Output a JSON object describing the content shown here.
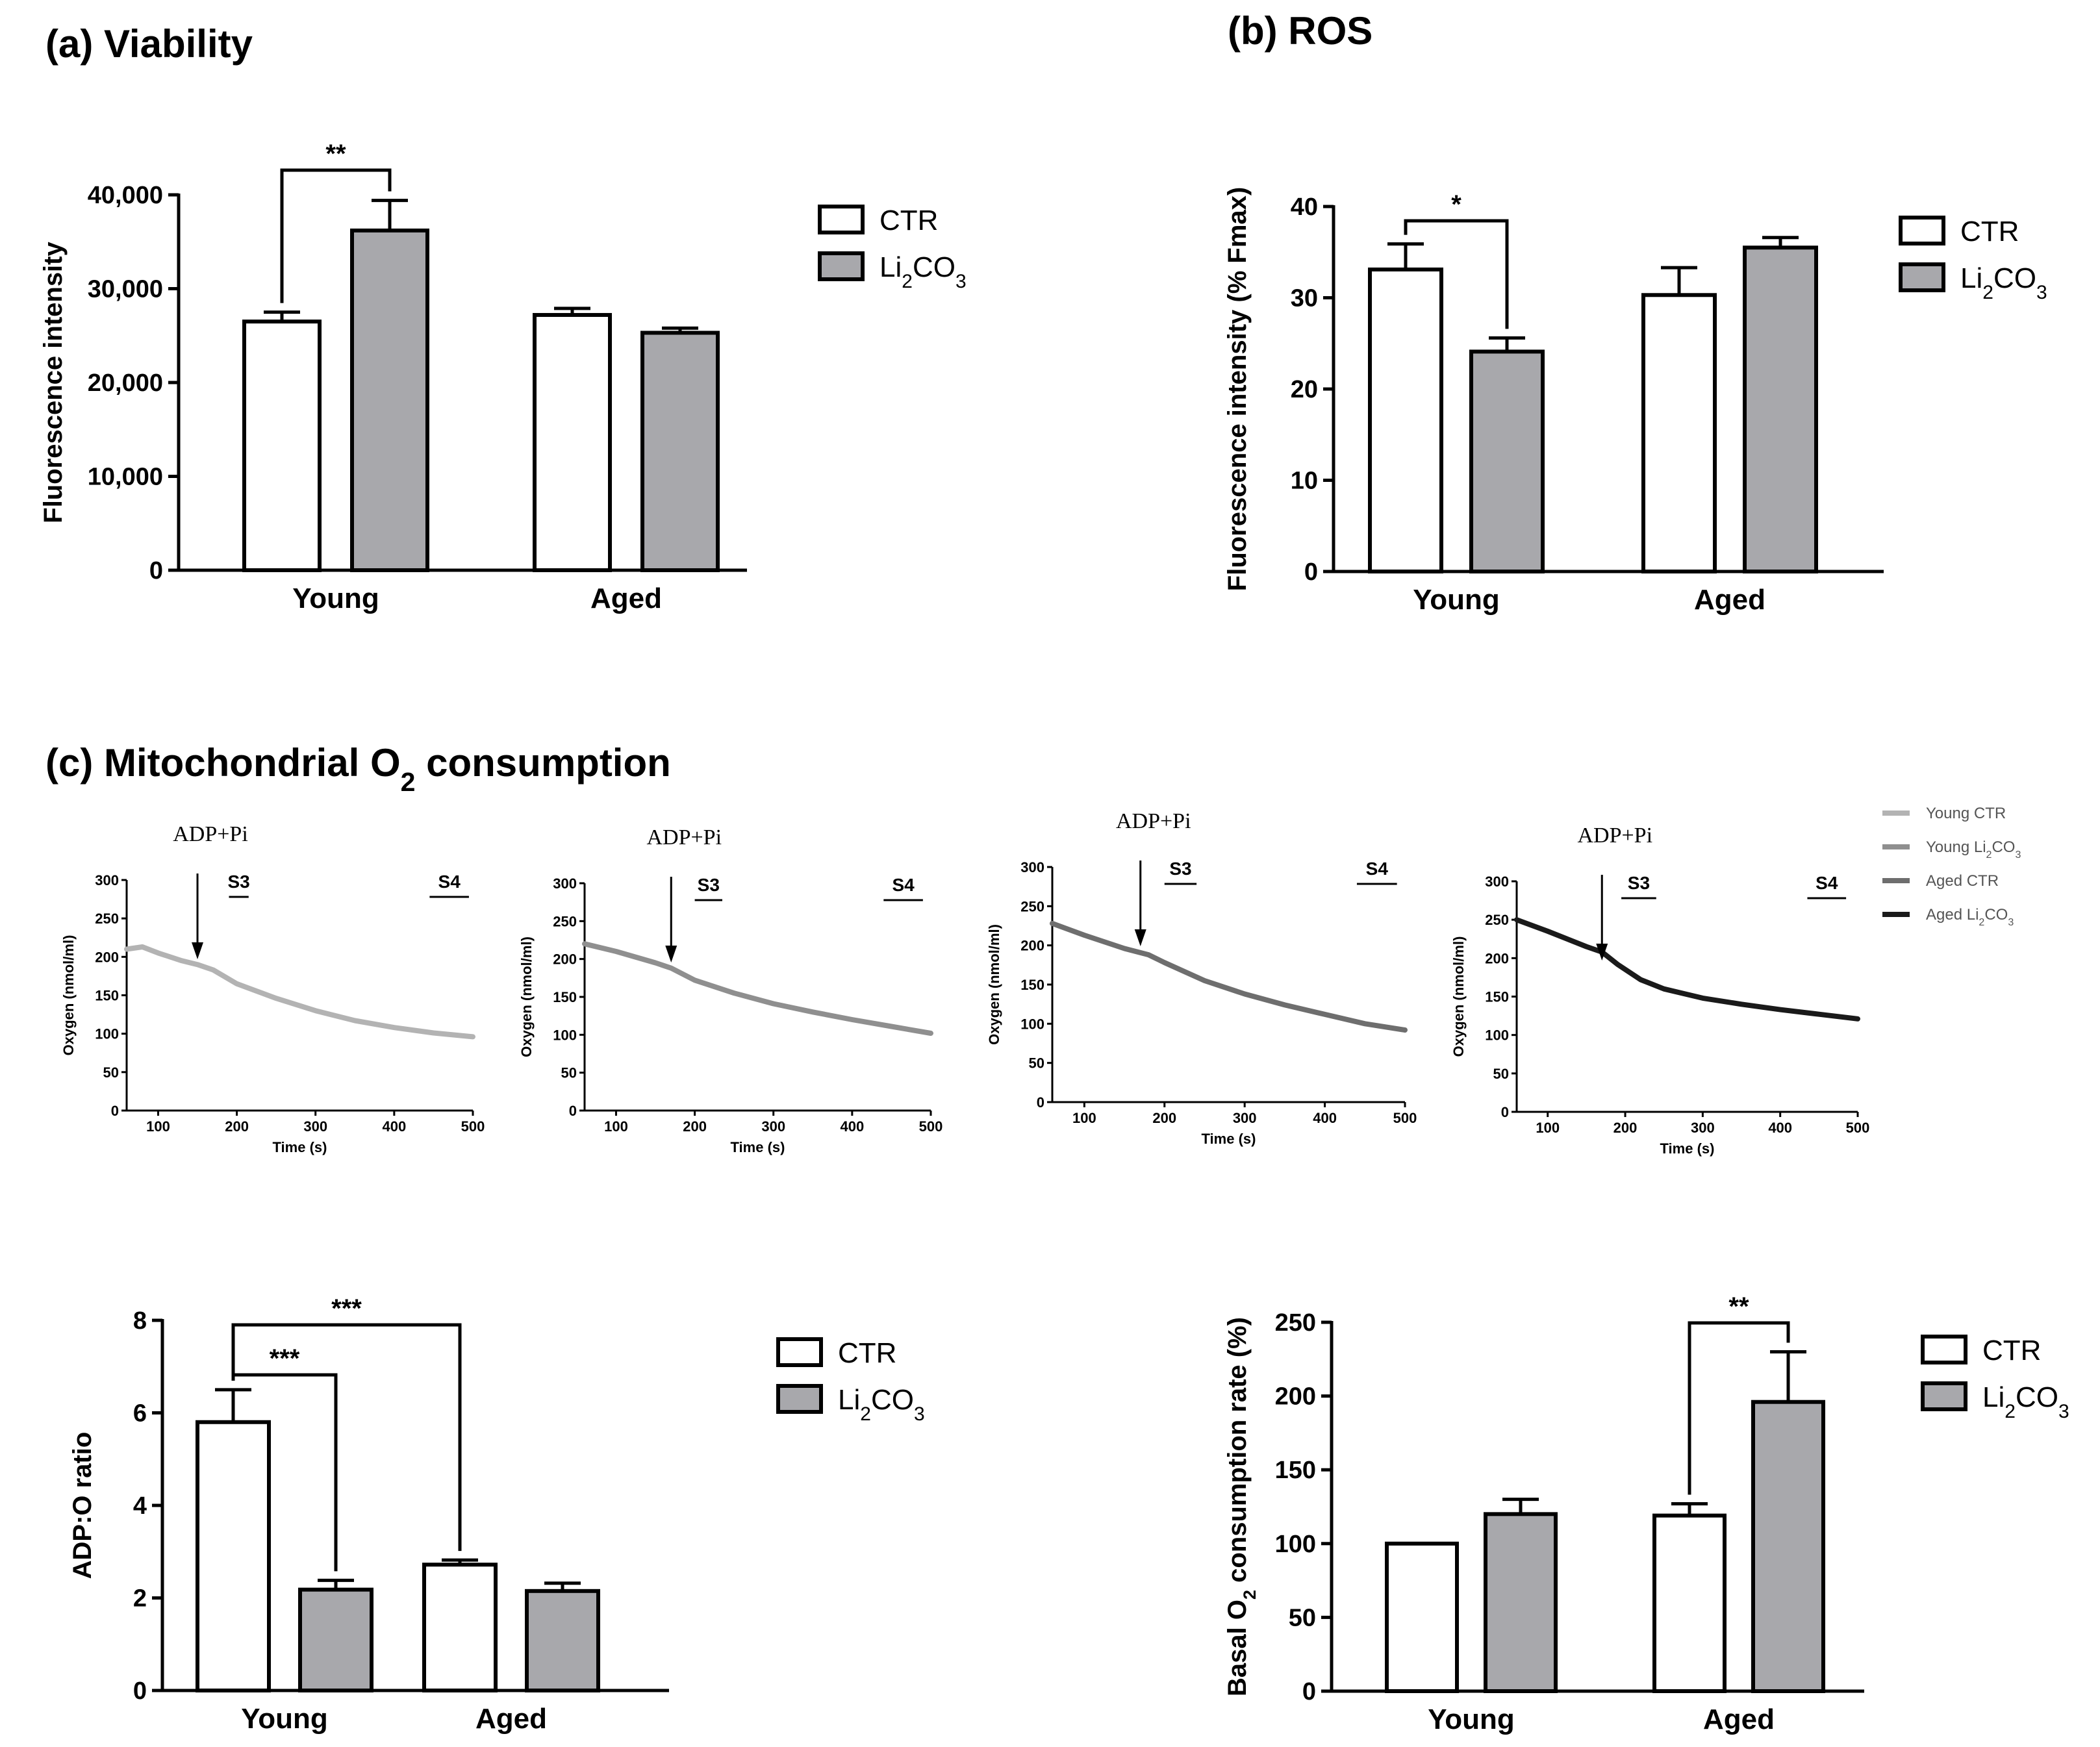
{
  "colors": {
    "ctr": "#ffffff",
    "li": "#a8a8ac",
    "axis": "#000000"
  },
  "legend_labels": [
    "CTR",
    "Li2CO3"
  ],
  "legend_labels_display": [
    [
      "CTR"
    ],
    [
      "Li",
      "2",
      "CO",
      "3"
    ]
  ],
  "chart_data": [
    {
      "id": "a",
      "type": "bar",
      "title": "(a) Viability",
      "ylabel": "Fluorescence intensity",
      "ylim": [
        0,
        40000
      ],
      "yticks": [
        0,
        10000,
        20000,
        30000,
        40000
      ],
      "ytick_labels": [
        "0",
        "10,000",
        "20,000",
        "30,000",
        "40,000"
      ],
      "categories": [
        "Young",
        "Aged"
      ],
      "series": [
        {
          "name": "CTR",
          "values": [
            26500,
            27200
          ],
          "errors": [
            1000,
            700
          ]
        },
        {
          "name": "Li2CO3",
          "values": [
            36200,
            25300
          ],
          "errors": [
            3200,
            500
          ]
        }
      ],
      "significance": [
        {
          "label": "**",
          "from": [
            0,
            0
          ],
          "to": [
            0,
            1
          ],
          "base": "top"
        }
      ]
    },
    {
      "id": "b",
      "type": "bar",
      "title": "(b) ROS",
      "ylabel": "Fluorescence intensity (% Fmax)",
      "ylim": [
        0,
        40
      ],
      "yticks": [
        0,
        10,
        20,
        30,
        40
      ],
      "ytick_labels": [
        "0",
        "10",
        "20",
        "30",
        "40"
      ],
      "categories": [
        "Young",
        "Aged"
      ],
      "series": [
        {
          "name": "CTR",
          "values": [
            33.1,
            30.3
          ],
          "errors": [
            2.8,
            3.0
          ]
        },
        {
          "name": "Li2CO3",
          "values": [
            24.1,
            35.5
          ],
          "errors": [
            1.5,
            1.1
          ]
        }
      ],
      "significance": [
        {
          "label": "*",
          "from": [
            0,
            0
          ],
          "to": [
            0,
            1
          ],
          "base": "top"
        }
      ]
    },
    {
      "id": "c",
      "type": "line",
      "title": "(c) Mitochondrial O2 consumption",
      "title_display": [
        "(c) Mitochondrial O",
        "2",
        " consumption"
      ],
      "xlabel": "Time (s)",
      "ylabel": "Oxygen (nmol/ml)",
      "xticks": [
        100,
        200,
        300,
        400,
        500
      ],
      "annotation": "ADP+Pi",
      "segment_labels": [
        "S3",
        "S4"
      ],
      "legend": [
        "Young CTR",
        "Young Li2CO3",
        "Aged CTR",
        "Aged Li2CO3"
      ],
      "legend_display": [
        [
          "Young CTR"
        ],
        [
          "Young Li",
          "2",
          "CO",
          "3"
        ],
        [
          "Aged CTR"
        ],
        [
          "Aged Li",
          "2",
          "CO",
          "3"
        ]
      ],
      "panels": [
        {
          "name": "Young CTR",
          "color": "#b3b3b3",
          "yticks": [
            0,
            50,
            100,
            150,
            200,
            250,
            300
          ],
          "x": [
            60,
            80,
            100,
            130,
            150,
            170,
            200,
            250,
            300,
            350,
            400,
            450,
            500
          ],
          "y": [
            210,
            213,
            205,
            195,
            190,
            183,
            165,
            146,
            130,
            117,
            108,
            101,
            96
          ],
          "adp_time": 150,
          "s3": [
            190,
            215
          ],
          "s4": [
            445,
            495
          ]
        },
        {
          "name": "Young Li2CO3",
          "color": "#8f8f8f",
          "yticks": [
            0,
            50,
            100,
            150,
            200,
            250,
            300
          ],
          "x": [
            60,
            100,
            150,
            170,
            200,
            250,
            300,
            350,
            400,
            450,
            500
          ],
          "y": [
            220,
            210,
            195,
            188,
            172,
            155,
            141,
            130,
            120,
            111,
            102
          ],
          "adp_time": 170,
          "s3": [
            200,
            235
          ],
          "s4": [
            440,
            490
          ]
        },
        {
          "name": "Aged CTR",
          "color": "#6e6e6e",
          "yticks": [
            0,
            50,
            100,
            150,
            200,
            250,
            300
          ],
          "x": [
            60,
            100,
            150,
            180,
            200,
            250,
            300,
            350,
            400,
            450,
            500
          ],
          "y": [
            228,
            213,
            196,
            188,
            178,
            155,
            138,
            124,
            112,
            100,
            92
          ],
          "adp_time": 170,
          "s3": [
            200,
            240
          ],
          "s4": [
            440,
            490
          ]
        },
        {
          "name": "Aged Li2CO3",
          "color": "#1a1a1a",
          "yticks": [
            0,
            50,
            100,
            150,
            200,
            250,
            300
          ],
          "x": [
            60,
            100,
            150,
            170,
            190,
            220,
            250,
            300,
            350,
            400,
            450,
            500
          ],
          "y": [
            250,
            235,
            215,
            208,
            192,
            172,
            160,
            148,
            140,
            133,
            127,
            121
          ],
          "adp_time": 170,
          "s3": [
            195,
            240
          ],
          "s4": [
            435,
            485
          ]
        }
      ]
    },
    {
      "id": "d",
      "type": "bar",
      "title": "",
      "ylabel": "ADP:O ratio",
      "ylim": [
        0,
        8
      ],
      "yticks": [
        0,
        2,
        4,
        6,
        8
      ],
      "ytick_labels": [
        "0",
        "2",
        "4",
        "6",
        "8"
      ],
      "categories": [
        "Young",
        "Aged"
      ],
      "series": [
        {
          "name": "CTR",
          "values": [
            5.8,
            2.72
          ],
          "errors": [
            0.7,
            0.1
          ]
        },
        {
          "name": "Li2CO3",
          "values": [
            2.18,
            2.15
          ],
          "errors": [
            0.2,
            0.17
          ]
        }
      ],
      "significance": [
        {
          "label": "***",
          "from": [
            0,
            0
          ],
          "to": [
            0,
            1
          ],
          "base": "top"
        },
        {
          "label": "***",
          "from": [
            0,
            0
          ],
          "to": [
            1,
            0
          ],
          "base": "top"
        }
      ]
    },
    {
      "id": "e",
      "type": "bar",
      "title": "",
      "ylabel": "Basal O2 consumption rate (%)",
      "ylabel_display": [
        "Basal O",
        "2",
        " consumption rate (%)"
      ],
      "ylim": [
        0,
        250
      ],
      "yticks": [
        0,
        50,
        100,
        150,
        200,
        250
      ],
      "ytick_labels": [
        "0",
        "50",
        "100",
        "150",
        "200",
        "250"
      ],
      "categories": [
        "Young",
        "Aged"
      ],
      "series": [
        {
          "name": "CTR",
          "values": [
            100,
            119
          ],
          "errors": [
            0,
            8
          ]
        },
        {
          "name": "Li2CO3",
          "values": [
            120,
            196
          ],
          "errors": [
            10,
            34
          ]
        }
      ],
      "significance": [
        {
          "label": "**",
          "from": [
            1,
            0
          ],
          "to": [
            1,
            1
          ],
          "base": "top"
        }
      ]
    }
  ]
}
